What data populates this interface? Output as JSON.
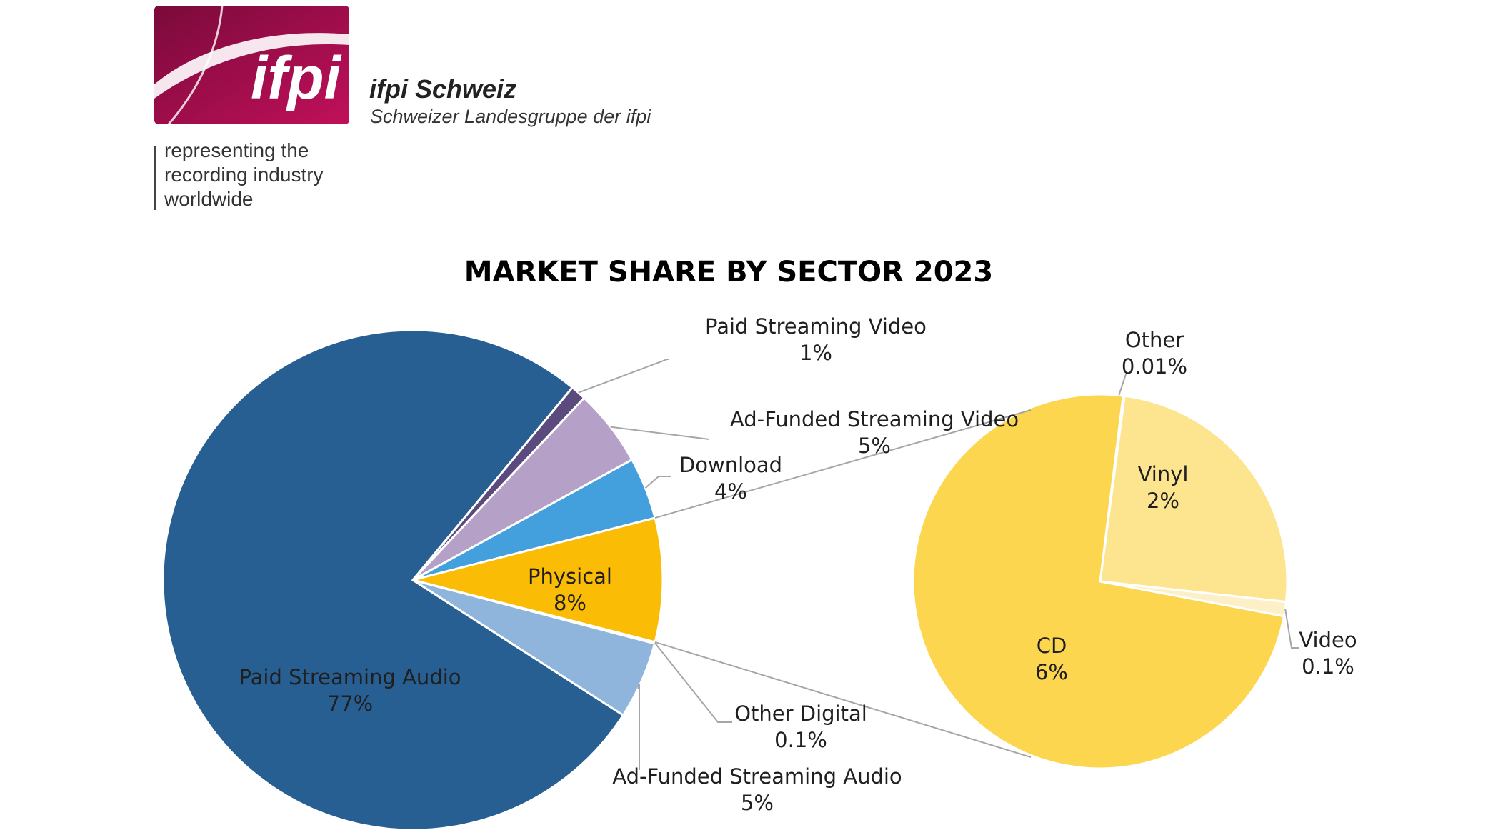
{
  "header": {
    "logo_text": "ifpi",
    "org_name": "ifpi Schweiz",
    "org_subtitle": "Schweizer Landesgruppe der ifpi",
    "tagline": [
      "representing the",
      "recording industry",
      "worldwide"
    ]
  },
  "colors": {
    "brand": "#a0064e",
    "paid_streaming_audio": "#285f93",
    "paid_streaming_video": "#5b4a7d",
    "ad_funded_streaming_video": "#b5a0c8",
    "download": "#44a0dc",
    "physical": "#fbbc05",
    "other_digital": "#e6eef7",
    "ad_funded_streaming_audio": "#90b5dc",
    "cd": "#fdd650",
    "vinyl": "#fde48f",
    "video": "#fdefc6",
    "other_physical": "#b24c0f"
  },
  "chart_data": [
    {
      "type": "pie",
      "title": "MARKET SHARE BY SECTOR 2023",
      "slices": [
        {
          "label": "Paid Streaming Audio",
          "value_label": "77%",
          "value": 77
        },
        {
          "label": "Paid Streaming Video",
          "value_label": "1%",
          "value": 1
        },
        {
          "label": "Ad-Funded Streaming Video",
          "value_label": "5%",
          "value": 5
        },
        {
          "label": "Download",
          "value_label": "4%",
          "value": 4
        },
        {
          "label": "Physical",
          "value_label": "8%",
          "value": 8
        },
        {
          "label": "Other Digital",
          "value_label": "0.1%",
          "value": 0.1
        },
        {
          "label": "Ad-Funded Streaming Audio",
          "value_label": "5%",
          "value": 5
        }
      ]
    },
    {
      "type": "pie",
      "slices": [
        {
          "label": "Other",
          "value_label": "0.01%",
          "value": 0.01
        },
        {
          "label": "Vinyl",
          "value_label": "2%",
          "value": 2
        },
        {
          "label": "Video",
          "value_label": "0.1%",
          "value": 0.1
        },
        {
          "label": "CD",
          "value_label": "6%",
          "value": 6
        }
      ]
    }
  ]
}
